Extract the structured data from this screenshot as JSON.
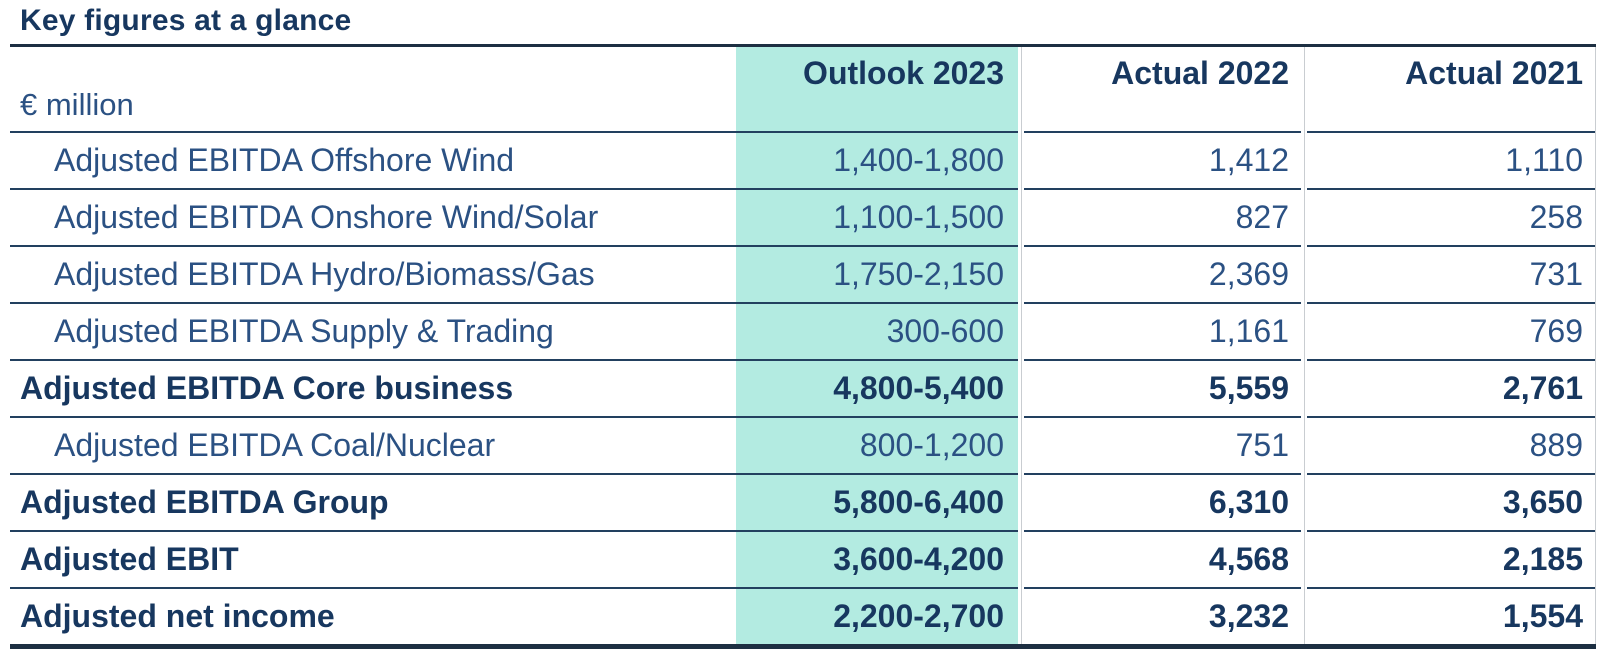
{
  "title": "Key figures at a glance",
  "table": {
    "unit_label": "€ million",
    "column_headers": [
      "Outlook 2023",
      "Actual 2022",
      "Actual 2021"
    ],
    "rows": [
      {
        "label": "Adjusted EBITDA Offshore Wind",
        "indent": true,
        "bold": false,
        "values": [
          "1,400-1,800",
          "1,412",
          "1,110"
        ]
      },
      {
        "label": "Adjusted EBITDA Onshore Wind/Solar",
        "indent": true,
        "bold": false,
        "values": [
          "1,100-1,500",
          "827",
          "258"
        ]
      },
      {
        "label": "Adjusted EBITDA Hydro/Biomass/Gas",
        "indent": true,
        "bold": false,
        "values": [
          "1,750-2,150",
          "2,369",
          "731"
        ]
      },
      {
        "label": "Adjusted EBITDA Supply & Trading",
        "indent": true,
        "bold": false,
        "values": [
          "300-600",
          "1,161",
          "769"
        ]
      },
      {
        "label": "Adjusted EBITDA Core business",
        "indent": false,
        "bold": true,
        "values": [
          "4,800-5,400",
          "5,559",
          "2,761"
        ]
      },
      {
        "label": "Adjusted EBITDA Coal/Nuclear",
        "indent": true,
        "bold": false,
        "values": [
          "800-1,200",
          "751",
          "889"
        ]
      },
      {
        "label": "Adjusted EBITDA Group",
        "indent": false,
        "bold": true,
        "values": [
          "5,800-6,400",
          "6,310",
          "3,650"
        ]
      },
      {
        "label": "Adjusted EBIT",
        "indent": false,
        "bold": true,
        "values": [
          "3,600-4,200",
          "4,568",
          "2,185"
        ]
      },
      {
        "label": "Adjusted net income",
        "indent": false,
        "bold": true,
        "values": [
          "2,200-2,700",
          "3,232",
          "1,554"
        ]
      }
    ]
  },
  "chart_data": {
    "type": "table",
    "title": "Key figures at a glance",
    "unit": "€ million",
    "columns": [
      "€ million",
      "Outlook 2023",
      "Actual 2022",
      "Actual 2021"
    ],
    "rows": [
      [
        "Adjusted EBITDA Offshore Wind",
        "1,400-1,800",
        "1,412",
        "1,110"
      ],
      [
        "Adjusted EBITDA Onshore Wind/Solar",
        "1,100-1,500",
        "827",
        "258"
      ],
      [
        "Adjusted EBITDA Hydro/Biomass/Gas",
        "1,750-2,150",
        "2,369",
        "731"
      ],
      [
        "Adjusted EBITDA Supply & Trading",
        "300-600",
        "1,161",
        "769"
      ],
      [
        "Adjusted EBITDA Core business",
        "4,800-5,400",
        "5,559",
        "2,761"
      ],
      [
        "Adjusted EBITDA Coal/Nuclear",
        "800-1,200",
        "751",
        "889"
      ],
      [
        "Adjusted EBITDA Group",
        "5,800-6,400",
        "6,310",
        "3,650"
      ],
      [
        "Adjusted EBIT",
        "3,600-4,200",
        "4,568",
        "2,185"
      ],
      [
        "Adjusted net income",
        "2,200-2,700",
        "3,232",
        "1,554"
      ]
    ],
    "bold_rows": [
      "Adjusted EBITDA Core business",
      "Adjusted EBITDA Group",
      "Adjusted EBIT",
      "Adjusted net income"
    ],
    "highlighted_column": "Outlook 2023"
  },
  "theme": {
    "navy_dark": "#17375f",
    "navy": "#2b5183",
    "teal_highlight": "#b3ebe1",
    "line_dark": "#1d2f42",
    "line_row": "#22405f",
    "line_gray": "#c9cdd1"
  }
}
